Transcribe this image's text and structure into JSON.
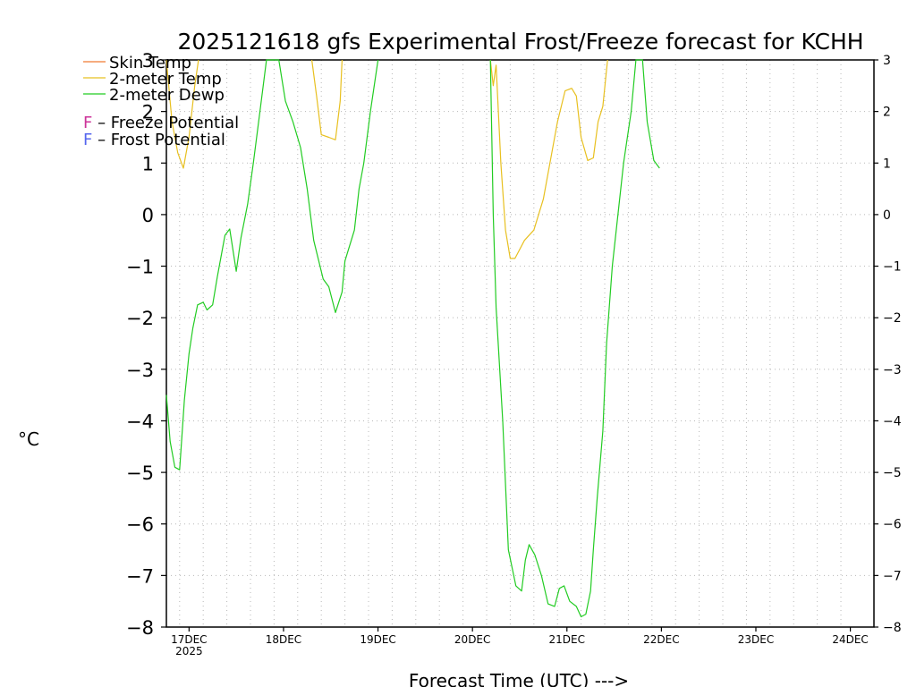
{
  "chart_data": {
    "type": "line",
    "title": "2025121618 gfs Experimental Frost/Freeze forecast for KCHH",
    "xlabel": "Forecast Time (UTC) --->",
    "ylabel": "°C",
    "ylim": [
      -8,
      3
    ],
    "xlim": [
      -0.24,
      7.25
    ],
    "yticks": [
      3,
      2,
      1,
      0,
      -1,
      -2,
      -3,
      -4,
      -5,
      -6,
      -7,
      -8
    ],
    "ytick_labels": [
      "3",
      "2",
      "1",
      "0",
      "−1",
      "−2",
      "−3",
      "−4",
      "−5",
      "−6",
      "−7",
      "−8"
    ],
    "xticks": [
      0,
      1,
      2,
      3,
      4,
      5,
      6,
      7
    ],
    "xtick_labels": [
      "17DEC",
      "18DEC",
      "19DEC",
      "20DEC",
      "21DEC",
      "22DEC",
      "23DEC",
      "24DEC"
    ],
    "xtick_sublabel": "2025",
    "grid": true,
    "legend": {
      "position": "top-left",
      "entries": [
        {
          "label": "Skin Temp",
          "color": "#f07a30"
        },
        {
          "label": "2-meter Temp",
          "color": "#e8c020"
        },
        {
          "label": "2-meter Dewp",
          "color": "#22cc22"
        }
      ],
      "notes": [
        {
          "letter": "F",
          "text": " – Freeze Potential",
          "color": "#cc3399"
        },
        {
          "letter": "F",
          "text": " – Frost Potential",
          "color": "#5566ee"
        }
      ]
    },
    "series": [
      {
        "name": "2-meter Temp",
        "color": "#e8c020",
        "segments": [
          [
            [
              -0.24,
              3.0
            ],
            [
              -0.18,
              1.8
            ],
            [
              -0.12,
              1.2
            ],
            [
              -0.06,
              0.9
            ],
            [
              0.0,
              1.5
            ],
            [
              0.06,
              2.5
            ],
            [
              0.1,
              3.0
            ]
          ],
          [
            [
              1.3,
              3.0
            ],
            [
              1.35,
              2.3
            ],
            [
              1.4,
              1.55
            ],
            [
              1.48,
              1.5
            ],
            [
              1.55,
              1.45
            ],
            [
              1.6,
              2.2
            ],
            [
              1.62,
              3.0
            ]
          ],
          [
            [
              3.19,
              3.0
            ],
            [
              3.22,
              2.5
            ],
            [
              3.25,
              2.9
            ],
            [
              3.3,
              1.0
            ],
            [
              3.35,
              -0.3
            ],
            [
              3.4,
              -0.85
            ],
            [
              3.45,
              -0.85
            ],
            [
              3.55,
              -0.5
            ],
            [
              3.65,
              -0.3
            ],
            [
              3.75,
              0.3
            ],
            [
              3.9,
              1.8
            ],
            [
              3.98,
              2.4
            ],
            [
              4.05,
              2.45
            ],
            [
              4.1,
              2.3
            ],
            [
              4.15,
              1.5
            ],
            [
              4.22,
              1.05
            ],
            [
              4.28,
              1.1
            ],
            [
              4.33,
              1.8
            ],
            [
              4.38,
              2.1
            ],
            [
              4.43,
              3.0
            ]
          ]
        ]
      },
      {
        "name": "2-meter Dewp",
        "color": "#22cc22",
        "segments": [
          [
            [
              -0.24,
              -3.5
            ],
            [
              -0.2,
              -4.4
            ],
            [
              -0.15,
              -4.9
            ],
            [
              -0.1,
              -4.95
            ],
            [
              -0.05,
              -3.6
            ],
            [
              0.0,
              -2.7
            ],
            [
              0.04,
              -2.2
            ],
            [
              0.09,
              -1.75
            ],
            [
              0.15,
              -1.7
            ],
            [
              0.19,
              -1.85
            ],
            [
              0.25,
              -1.75
            ],
            [
              0.3,
              -1.2
            ],
            [
              0.38,
              -0.4
            ],
            [
              0.43,
              -0.28
            ],
            [
              0.5,
              -1.1
            ],
            [
              0.55,
              -0.45
            ],
            [
              0.62,
              0.2
            ],
            [
              0.68,
              1.0
            ],
            [
              0.75,
              2.0
            ],
            [
              0.82,
              3.0
            ],
            [
              0.95,
              3.0
            ],
            [
              1.02,
              2.2
            ],
            [
              1.1,
              1.8
            ],
            [
              1.18,
              1.3
            ],
            [
              1.25,
              0.5
            ],
            [
              1.32,
              -0.5
            ],
            [
              1.42,
              -1.25
            ],
            [
              1.48,
              -1.4
            ],
            [
              1.55,
              -1.9
            ],
            [
              1.62,
              -1.5
            ],
            [
              1.65,
              -0.9
            ],
            [
              1.75,
              -0.3
            ],
            [
              1.8,
              0.5
            ],
            [
              1.85,
              1.0
            ],
            [
              1.92,
              2.0
            ],
            [
              2.0,
              3.0
            ]
          ],
          [
            [
              3.19,
              3.0
            ],
            [
              3.22,
              0.0
            ],
            [
              3.25,
              -1.8
            ],
            [
              3.32,
              -4.0
            ],
            [
              3.38,
              -6.5
            ],
            [
              3.46,
              -7.2
            ],
            [
              3.52,
              -7.3
            ],
            [
              3.56,
              -6.7
            ],
            [
              3.6,
              -6.4
            ],
            [
              3.66,
              -6.6
            ],
            [
              3.73,
              -7.0
            ],
            [
              3.8,
              -7.55
            ],
            [
              3.87,
              -7.6
            ],
            [
              3.92,
              -7.25
            ],
            [
              3.97,
              -7.2
            ],
            [
              4.03,
              -7.5
            ],
            [
              4.1,
              -7.6
            ],
            [
              4.15,
              -7.8
            ],
            [
              4.2,
              -7.75
            ],
            [
              4.25,
              -7.3
            ],
            [
              4.28,
              -6.5
            ],
            [
              4.32,
              -5.5
            ],
            [
              4.38,
              -4.2
            ],
            [
              4.42,
              -2.5
            ],
            [
              4.48,
              -1.0
            ],
            [
              4.54,
              0.0
            ],
            [
              4.6,
              1.0
            ],
            [
              4.68,
              2.0
            ],
            [
              4.73,
              3.0
            ],
            [
              4.8,
              3.0
            ],
            [
              4.85,
              1.8
            ],
            [
              4.92,
              1.05
            ],
            [
              4.98,
              0.9
            ]
          ]
        ]
      }
    ]
  }
}
